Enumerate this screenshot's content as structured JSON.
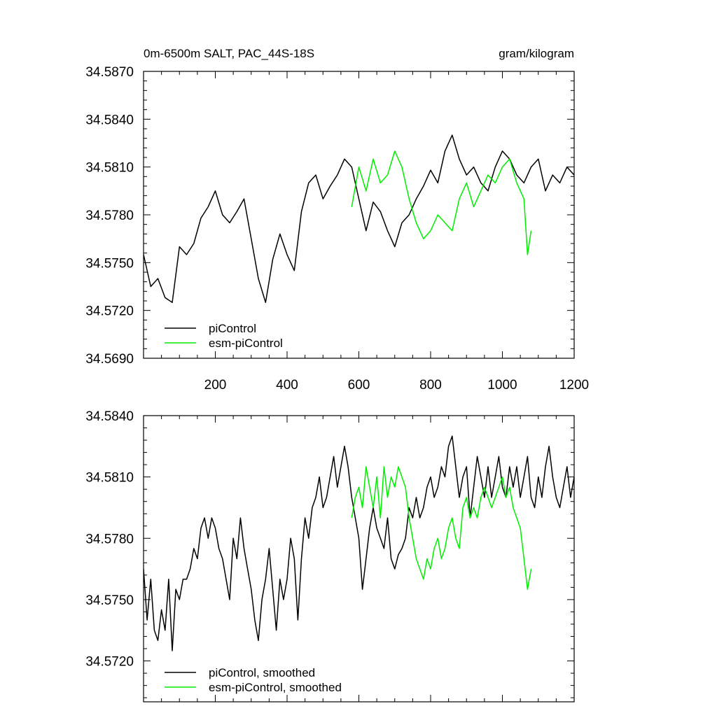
{
  "chart_data": [
    {
      "type": "line",
      "title": "0m-6500m SALT, PAC_44S-18S",
      "units": "gram/kilogram",
      "xlim": [
        0,
        1200
      ],
      "ylim": [
        34.569,
        34.587
      ],
      "x_ticks": [
        200,
        400,
        600,
        800,
        1000,
        1200
      ],
      "x_tick_labels": [
        "200",
        "400",
        "600",
        "800",
        "1000",
        "1200"
      ],
      "y_ticks": [
        34.569,
        34.572,
        34.575,
        34.578,
        34.581,
        34.584,
        34.587
      ],
      "y_tick_labels": [
        "34.5690",
        "34.5720",
        "34.5750",
        "34.5780",
        "34.5810",
        "34.5840",
        "34.5870"
      ],
      "legend_position": "bottom-left",
      "series": [
        {
          "name": "piControl",
          "color": "#000000",
          "x": [
            0,
            20,
            40,
            60,
            80,
            100,
            120,
            140,
            160,
            180,
            200,
            220,
            240,
            260,
            280,
            300,
            320,
            340,
            360,
            380,
            400,
            420,
            440,
            460,
            480,
            500,
            520,
            540,
            560,
            580,
            600,
            620,
            640,
            660,
            680,
            700,
            720,
            740,
            760,
            780,
            800,
            820,
            840,
            860,
            880,
            900,
            920,
            940,
            960,
            980,
            1000,
            1020,
            1040,
            1060,
            1080,
            1100,
            1120,
            1140,
            1160,
            1180,
            1200
          ],
          "y": [
            34.5755,
            34.5735,
            34.574,
            34.5728,
            34.5725,
            34.576,
            34.5755,
            34.5762,
            34.5778,
            34.5785,
            34.5795,
            34.578,
            34.5775,
            34.5782,
            34.579,
            34.5765,
            34.574,
            34.5725,
            34.5752,
            34.5768,
            34.5755,
            34.5745,
            34.5782,
            34.58,
            34.5805,
            34.579,
            34.5798,
            34.5805,
            34.5815,
            34.581,
            34.579,
            34.577,
            34.5788,
            34.5782,
            34.577,
            34.576,
            34.5775,
            34.578,
            34.579,
            34.5798,
            34.5808,
            34.58,
            34.582,
            34.583,
            34.5815,
            34.5805,
            34.581,
            34.58,
            34.5795,
            34.581,
            34.582,
            34.5815,
            34.5805,
            34.58,
            34.581,
            34.5815,
            34.5795,
            34.5805,
            34.58,
            34.581,
            34.5805
          ]
        },
        {
          "name": "esm-piControl",
          "color": "#00ee00",
          "x": [
            580,
            600,
            620,
            640,
            660,
            680,
            700,
            720,
            740,
            760,
            780,
            800,
            820,
            840,
            860,
            880,
            900,
            920,
            940,
            960,
            980,
            1000,
            1020,
            1040,
            1060,
            1070,
            1080
          ],
          "y": [
            34.5785,
            34.581,
            34.5795,
            34.5815,
            34.58,
            34.5805,
            34.582,
            34.581,
            34.579,
            34.5775,
            34.5765,
            34.577,
            34.578,
            34.5775,
            34.577,
            34.579,
            34.58,
            34.5785,
            34.5795,
            34.5805,
            34.58,
            34.581,
            34.5815,
            34.58,
            34.579,
            34.5755,
            34.577
          ]
        }
      ]
    },
    {
      "type": "line",
      "xlim": [
        0,
        1200
      ],
      "ylim": [
        34.57,
        34.584
      ],
      "y_ticks": [
        34.572,
        34.575,
        34.578,
        34.581,
        34.584
      ],
      "y_tick_labels": [
        "34.5720",
        "34.5750",
        "34.5780",
        "34.5810",
        "34.5840"
      ],
      "legend_position": "bottom-left",
      "series": [
        {
          "name": "piControl, smoothed",
          "color": "#000000",
          "x": [
            0,
            10,
            20,
            30,
            40,
            50,
            60,
            70,
            80,
            90,
            100,
            110,
            120,
            130,
            140,
            150,
            160,
            170,
            180,
            190,
            200,
            210,
            220,
            230,
            240,
            250,
            260,
            270,
            280,
            290,
            300,
            310,
            320,
            330,
            340,
            350,
            360,
            370,
            380,
            390,
            400,
            410,
            420,
            430,
            440,
            450,
            460,
            470,
            480,
            490,
            500,
            510,
            520,
            530,
            540,
            550,
            560,
            570,
            580,
            590,
            600,
            610,
            620,
            630,
            640,
            650,
            660,
            670,
            680,
            690,
            700,
            710,
            720,
            730,
            740,
            750,
            760,
            770,
            780,
            790,
            800,
            810,
            820,
            830,
            840,
            850,
            860,
            870,
            880,
            890,
            900,
            910,
            920,
            930,
            940,
            950,
            960,
            970,
            980,
            990,
            1000,
            1010,
            1020,
            1030,
            1040,
            1050,
            1060,
            1070,
            1080,
            1090,
            1100,
            1110,
            1120,
            1130,
            1140,
            1150,
            1160,
            1170,
            1180,
            1190,
            1200
          ],
          "y": [
            34.5765,
            34.574,
            34.576,
            34.5735,
            34.573,
            34.5745,
            34.5735,
            34.576,
            34.5725,
            34.5755,
            34.575,
            34.576,
            34.576,
            34.5765,
            34.5775,
            34.577,
            34.5785,
            34.579,
            34.578,
            34.579,
            34.5785,
            34.5775,
            34.577,
            34.576,
            34.575,
            34.578,
            34.577,
            34.579,
            34.5775,
            34.5765,
            34.5755,
            34.574,
            34.573,
            34.575,
            34.576,
            34.5775,
            34.5755,
            34.5735,
            34.576,
            34.575,
            34.576,
            34.578,
            34.577,
            34.574,
            34.577,
            34.579,
            34.578,
            34.5795,
            34.58,
            34.581,
            34.5795,
            34.58,
            34.581,
            34.582,
            34.5805,
            34.5815,
            34.5825,
            34.5815,
            34.58,
            34.579,
            34.578,
            34.5755,
            34.577,
            34.5785,
            34.5795,
            34.5785,
            34.578,
            34.5775,
            34.579,
            34.577,
            34.5765,
            34.5772,
            34.5775,
            34.578,
            34.5795,
            34.579,
            34.58,
            34.579,
            34.5795,
            34.5805,
            34.581,
            34.58,
            34.5805,
            34.5815,
            34.581,
            34.5825,
            34.583,
            34.5815,
            34.58,
            34.581,
            34.5815,
            34.579,
            34.5805,
            34.582,
            34.581,
            34.58,
            34.5815,
            34.58,
            34.581,
            34.582,
            34.5805,
            34.58,
            34.5815,
            34.5805,
            34.5815,
            34.58,
            34.581,
            34.582,
            34.58,
            34.5795,
            34.581,
            34.58,
            34.5815,
            34.5825,
            34.581,
            34.58,
            34.5795,
            34.5805,
            34.5815,
            34.58,
            34.581
          ]
        },
        {
          "name": "esm-piControl, smoothed",
          "color": "#00ee00",
          "x": [
            580,
            590,
            600,
            610,
            620,
            630,
            640,
            650,
            660,
            670,
            680,
            690,
            700,
            710,
            720,
            730,
            740,
            750,
            760,
            770,
            780,
            790,
            800,
            810,
            820,
            830,
            840,
            850,
            860,
            870,
            880,
            890,
            900,
            910,
            920,
            930,
            940,
            950,
            960,
            970,
            980,
            990,
            1000,
            1010,
            1020,
            1030,
            1040,
            1050,
            1060,
            1070,
            1080
          ],
          "y": [
            34.579,
            34.58,
            34.5805,
            34.5795,
            34.5815,
            34.5805,
            34.5795,
            34.581,
            34.579,
            34.5815,
            34.58,
            34.581,
            34.5805,
            34.5815,
            34.581,
            34.5805,
            34.579,
            34.578,
            34.577,
            34.5765,
            34.576,
            34.577,
            34.5765,
            34.5775,
            34.578,
            34.577,
            34.5775,
            34.5785,
            34.579,
            34.578,
            34.5775,
            34.5795,
            34.58,
            34.579,
            34.5795,
            34.579,
            34.58,
            34.5805,
            34.58,
            34.5795,
            34.58,
            34.5805,
            34.581,
            34.58,
            34.5805,
            34.5795,
            34.579,
            34.5785,
            34.577,
            34.5755,
            34.5765
          ]
        }
      ]
    }
  ]
}
